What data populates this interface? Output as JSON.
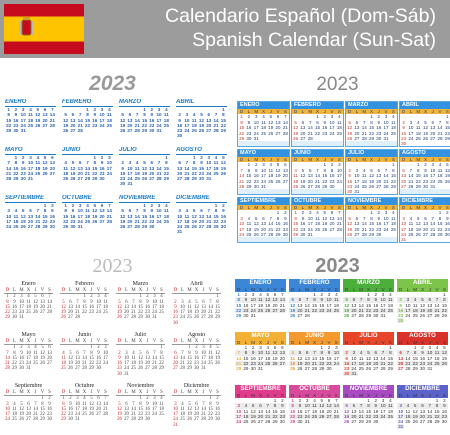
{
  "header": {
    "title_line1": "Calendario Español (Dom-Sáb)",
    "title_line2": "Spanish Calendar (Sun-Sat)"
  },
  "year": "2023",
  "months_upper": [
    "ENERO",
    "FEBRERO",
    "MARZO",
    "ABRIL",
    "MAYO",
    "JUNIO",
    "JULIO",
    "AGOSTO",
    "SEPTIEMBRE",
    "OCTUBRE",
    "NOVIEMBRE",
    "DICIEMBRE"
  ],
  "months_title": [
    "Enero",
    "Febrero",
    "Marzo",
    "Abril",
    "Mayo",
    "Junio",
    "Julio",
    "Agosto",
    "Septiembre",
    "Octubre",
    "Noviembre",
    "Diciembre"
  ],
  "weekdays": [
    "D",
    "L",
    "M",
    "X",
    "J",
    "V",
    "S"
  ],
  "month_start_weekday": [
    0,
    3,
    3,
    6,
    1,
    4,
    6,
    2,
    5,
    0,
    3,
    5
  ],
  "month_days": [
    31,
    28,
    31,
    30,
    31,
    30,
    31,
    31,
    30,
    31,
    30,
    31
  ],
  "colors": {
    "flag_red": "#c60b1e",
    "flag_yellow": "#ffc400",
    "panel1_blue": "#1a7bc7",
    "panel2_header": "#3392e0",
    "panel2_weekday": "#f0b53a",
    "sunday_red": "#c81e1e"
  },
  "panel4_month_colors": [
    "#3b86d6",
    "#3b86d6",
    "#4caf3b",
    "#7cc44a",
    "#f2b134",
    "#f29a2e",
    "#e8462a",
    "#d9322b",
    "#e03c8c",
    "#d84b9c",
    "#a84bc0",
    "#5b62c9"
  ]
}
